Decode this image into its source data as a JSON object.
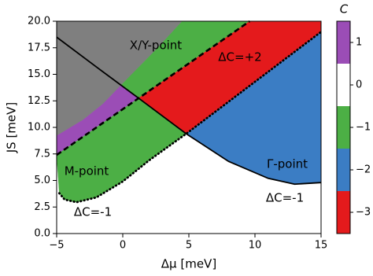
{
  "chart_data": {
    "type": "phase-diagram",
    "xlabel": "Δμ [meV]",
    "ylabel": "JS [meV]",
    "xlim": [
      -5,
      15
    ],
    "ylim": [
      0,
      20
    ],
    "xticks": [
      {
        "value": -5,
        "label": "−5"
      },
      0,
      5,
      10,
      15
    ],
    "yticks": [
      {
        "value": 0,
        "label": "0.0"
      },
      {
        "value": 2.5,
        "label": "2.5"
      },
      {
        "value": 5,
        "label": "5.0"
      },
      {
        "value": 7.5,
        "label": "7.5"
      },
      {
        "value": 10,
        "label": "10.0"
      },
      {
        "value": 12.5,
        "label": "12.5"
      },
      {
        "value": 15,
        "label": "15.0"
      },
      {
        "value": 17.5,
        "label": "17.5"
      },
      {
        "value": 20,
        "label": "20.0"
      }
    ],
    "regions": [
      {
        "color": "#7f7f7f",
        "x": [
          -5,
          4.5,
          2.5,
          1,
          -0.1,
          -1.5,
          -3,
          -5
        ],
        "y": [
          20,
          20,
          17.3,
          15.4,
          14.0,
          12.2,
          10.7,
          9.2
        ]
      },
      {
        "color": "#9b4db6",
        "x": [
          -5,
          1.2,
          -0.1,
          -1.5,
          -3,
          -5
        ],
        "y": [
          7.4,
          12.75,
          14.0,
          12.2,
          10.7,
          9.2
        ]
      },
      {
        "color": "#4caf45",
        "x": [
          1.2,
          9.6,
          4.5,
          2.5,
          1,
          -0.1
        ],
        "y": [
          12.75,
          20,
          20,
          17.3,
          15.4,
          14.0
        ]
      },
      {
        "color": "#e41a1c",
        "x": [
          1.2,
          9.6,
          15,
          15,
          4.8
        ],
        "y": [
          12.75,
          20,
          20,
          19.0,
          9.4
        ]
      },
      {
        "color": "#3b7dc4",
        "x": [
          4.8,
          15,
          15,
          13,
          11,
          8
        ],
        "y": [
          9.4,
          19.0,
          4.8,
          4.65,
          5.2,
          6.8
        ]
      },
      {
        "color": "#4caf45",
        "x": [
          -5,
          1.2,
          4.8,
          2,
          0,
          -2,
          -3.5,
          -4.4,
          -4.8
        ],
        "y": [
          7.4,
          12.75,
          9.4,
          6.9,
          4.9,
          3.4,
          2.95,
          3.2,
          3.8
        ]
      }
    ],
    "series": [
      {
        "style": "solid",
        "x": [
          -5,
          -2,
          1.2,
          4.8,
          8,
          11,
          13,
          15
        ],
        "y": [
          18.5,
          15.7,
          12.75,
          9.4,
          6.8,
          5.2,
          4.65,
          4.8
        ]
      },
      {
        "style": "dashed",
        "x": [
          -5,
          9.6
        ],
        "y": [
          7.4,
          20
        ]
      },
      {
        "style": "dotted",
        "x": [
          -4.8,
          -4.4,
          -3.5,
          -2,
          0,
          2,
          4.8,
          15
        ],
        "y": [
          3.8,
          3.2,
          2.95,
          3.4,
          4.9,
          6.9,
          9.4,
          19.0
        ]
      }
    ],
    "annotations": [
      "X/Y-point",
      "ΔC=+2",
      "M-point",
      "Γ-point",
      "ΔC=-1",
      "ΔC=-1"
    ],
    "colorbar": {
      "label": "C",
      "values": [
        1,
        0,
        -1,
        -2,
        -3
      ],
      "colors": [
        "#9b4db6",
        "#ffffff",
        "#4caf45",
        "#3b7dc4",
        "#e41a1c"
      ],
      "lim": [
        -3.5,
        1.5
      ],
      "ticks": [
        1,
        0,
        {
          "value": -1,
          "label": "−1"
        },
        {
          "value": -2,
          "label": "−2"
        },
        {
          "value": -3,
          "label": "−3"
        }
      ]
    }
  }
}
